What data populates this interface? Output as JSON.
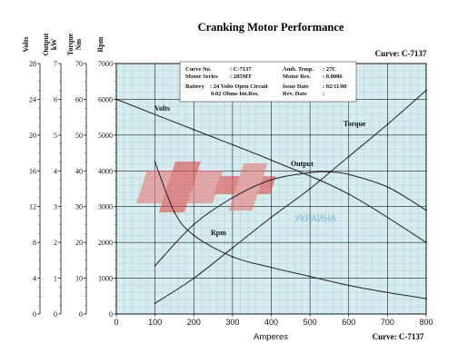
{
  "title": "Cranking Motor Performance",
  "curve_label_top": "Curve: C-7137",
  "curve_label_bottom": "Curve: C-7137",
  "info": {
    "curve_no_label": "Curve No.",
    "curve_no": ": C-7137",
    "motor_series_label": "Motor Series",
    "motor_series": ": 285MT",
    "battery_label": "Battery",
    "battery": ": 24 Volts Open Circuit",
    "resistance": "0.02 Ohms Int.Res.",
    "amb_temp_label": "Amb. Temp.",
    "amb_temp": ": 27C",
    "motor_res_label": "Motor Res.",
    "motor_res": ": 0.0086",
    "issue_date_label": "Issue Date",
    "issue_date": ": 02/11/00",
    "rev_date_label": "Rev. Date",
    "rev_date": ":"
  },
  "watermark": {
    "logo": "AS",
    "text": "УКРАИНА"
  },
  "chart_data": {
    "type": "line",
    "title": "Cranking Motor Performance",
    "xlabel": "Amperes",
    "xlim": [
      0,
      800
    ],
    "x_ticks": [
      "0",
      "100",
      "200",
      "300",
      "400",
      "500",
      "600",
      "700",
      "800"
    ],
    "grid": true,
    "axes": [
      {
        "label": "Volts",
        "range": [
          0,
          28
        ],
        "ticks": [
          "0",
          "4",
          "8",
          "12",
          "16",
          "20",
          "24",
          "28"
        ]
      },
      {
        "label": "Output kW",
        "range": [
          0,
          7
        ],
        "ticks": [
          "0",
          "1",
          "2",
          "3",
          "4",
          "5",
          "6",
          "7"
        ]
      },
      {
        "label": "Torque Nm",
        "range": [
          0,
          70
        ],
        "ticks": [
          "0",
          "10",
          "20",
          "30",
          "40",
          "50",
          "60",
          "70"
        ]
      },
      {
        "label": "Rpm",
        "range": [
          0,
          7000
        ],
        "ticks": [
          "0",
          "1000",
          "2000",
          "3000",
          "4000",
          "5000",
          "6000",
          "7000"
        ]
      }
    ],
    "series": [
      {
        "name": "Volts",
        "axis": "Volts",
        "x": [
          0,
          200,
          400,
          600,
          800
        ],
        "y": [
          24,
          20.6,
          17.2,
          13.4,
          8.0
        ]
      },
      {
        "name": "Torque",
        "axis": "Torque Nm",
        "x": [
          100,
          200,
          300,
          400,
          500,
          600,
          700,
          800
        ],
        "y": [
          3.0,
          10.0,
          18.5,
          27.0,
          35.0,
          44.0,
          53.0,
          62.5
        ]
      },
      {
        "name": "Output",
        "axis": "Output kW",
        "x": [
          100,
          200,
          300,
          400,
          500,
          550,
          600,
          700,
          800
        ],
        "y": [
          1.35,
          2.5,
          3.25,
          3.75,
          3.95,
          3.97,
          3.9,
          3.55,
          2.9
        ]
      },
      {
        "name": "Rpm",
        "axis": "Rpm",
        "x": [
          100,
          150,
          200,
          300,
          400,
          500,
          600,
          700,
          800
        ],
        "y": [
          4250,
          2850,
          2200,
          1600,
          1300,
          1050,
          800,
          600,
          430
        ]
      }
    ]
  }
}
